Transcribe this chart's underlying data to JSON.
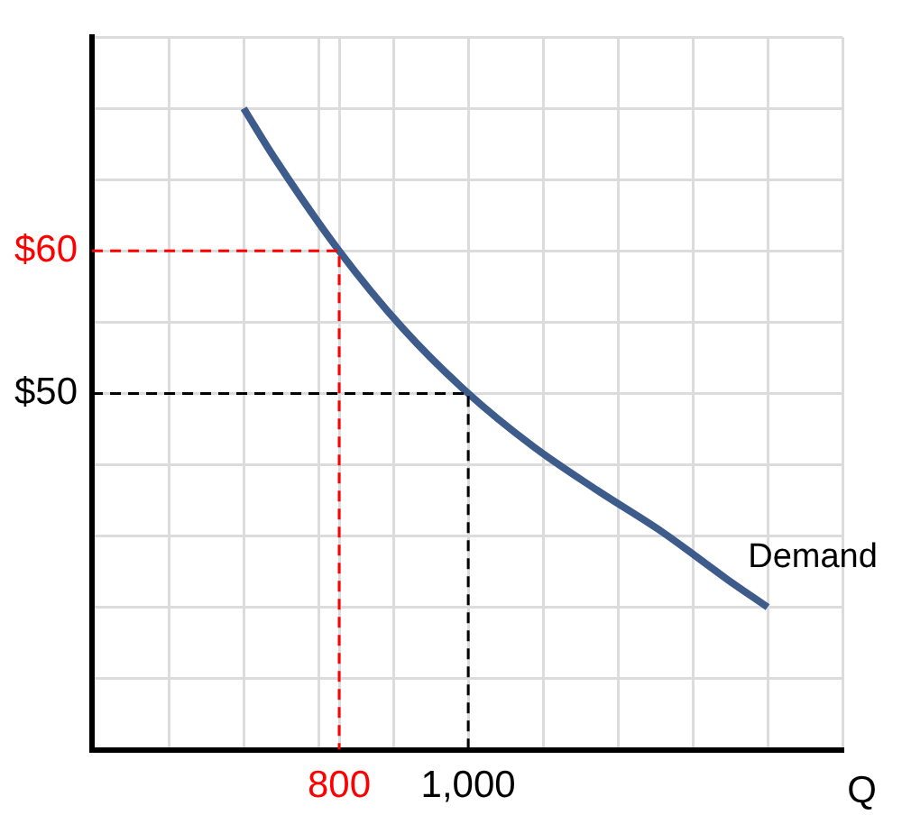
{
  "chart_data": {
    "type": "line",
    "xlabel": "Q",
    "xlim": [
      417,
      1580
    ],
    "ylim": [
      25,
      75
    ],
    "xticks": [
      {
        "value": 536,
        "label": null
      },
      {
        "value": 652,
        "label": null
      },
      {
        "value": 768,
        "label": null
      },
      {
        "value": 800,
        "label": "800"
      },
      {
        "value": 884,
        "label": null
      },
      {
        "value": 1000,
        "label": "1,000"
      },
      {
        "value": 1116,
        "label": null
      },
      {
        "value": 1232,
        "label": null
      },
      {
        "value": 1348,
        "label": null
      },
      {
        "value": 1464,
        "label": null
      },
      {
        "value": 1580,
        "label": null
      }
    ],
    "yticks": [
      {
        "value": 30,
        "label": null
      },
      {
        "value": 35,
        "label": null
      },
      {
        "value": 40,
        "label": null
      },
      {
        "value": 45,
        "label": null
      },
      {
        "value": 50,
        "label": "$50"
      },
      {
        "value": 55,
        "label": null
      },
      {
        "value": 60,
        "label": "$60"
      },
      {
        "value": 65,
        "label": null
      },
      {
        "value": 70,
        "label": null
      },
      {
        "value": 75,
        "label": null
      }
    ],
    "grid": true,
    "legend": false,
    "marker": "none",
    "series": [
      {
        "name": "Demand",
        "color": "#3d5c8c",
        "line_style": "solid",
        "x": [
          652,
          700,
          800,
          900,
          1000,
          1100,
          1200,
          1300,
          1400,
          1464
        ],
        "values": [
          70,
          66.5,
          60,
          54.5,
          50,
          46.3,
          43.2,
          40.3,
          37,
          35
        ]
      },
      {
        "color": "#ff0000",
        "line_style": "dashed",
        "x": [
          417,
          800,
          800
        ],
        "values": [
          60,
          60,
          25
        ]
      },
      {
        "color": "#000000",
        "line_style": "dashed",
        "x": [
          417,
          1000,
          1000
        ],
        "values": [
          50,
          50,
          25
        ]
      }
    ]
  }
}
